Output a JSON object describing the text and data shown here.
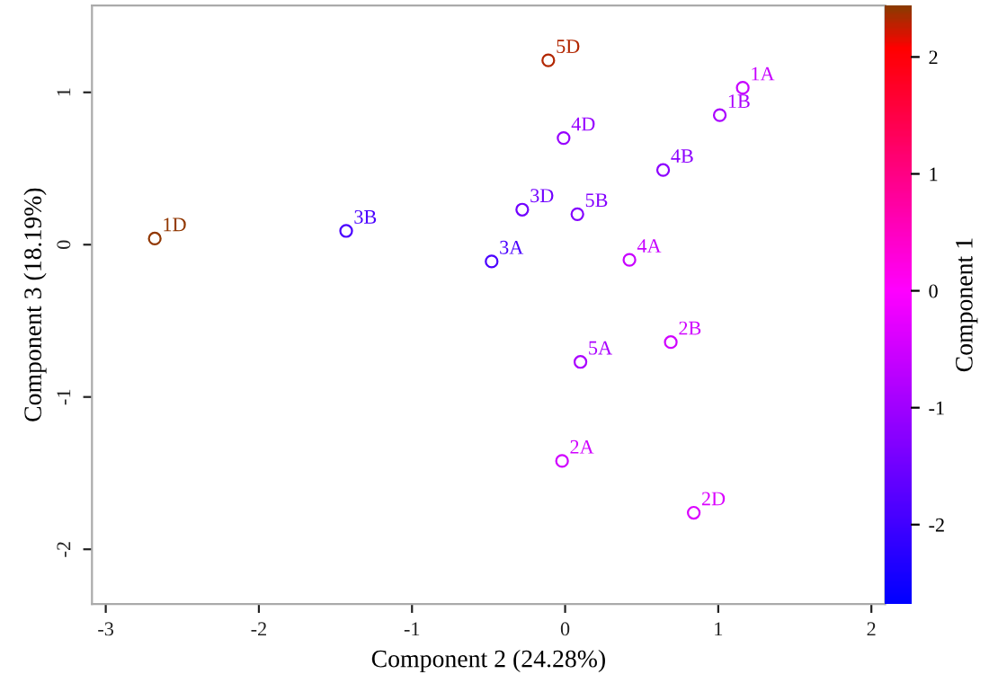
{
  "chart_data": {
    "type": "scatter",
    "xlabel": "Component 2 (24.28%)",
    "ylabel": "Component 3 (18.19%)",
    "clabel": "Component 1",
    "x": [
      -2.68,
      -1.43,
      -0.48,
      -0.11,
      1.16,
      1.01,
      -0.01,
      0.64,
      -0.28,
      0.08,
      0.42,
      0.69,
      0.1,
      -0.02,
      0.84
    ],
    "values": [
      0.04,
      0.09,
      -0.11,
      1.21,
      1.03,
      0.85,
      0.7,
      0.49,
      0.23,
      0.2,
      -0.1,
      -0.64,
      -0.77,
      -1.42,
      -1.76
    ],
    "cvalues": [
      2.4,
      -1.9,
      -1.9,
      2.3,
      -0.6,
      -0.9,
      -1.1,
      -1.2,
      -1.5,
      -1.3,
      -0.6,
      -0.5,
      -0.9,
      -0.5,
      -0.4
    ],
    "annotations": [
      {
        "text": "1D",
        "x": -2.68,
        "y": 0.04
      },
      {
        "text": "3B",
        "x": -1.43,
        "y": 0.09
      },
      {
        "text": "3A",
        "x": -0.48,
        "y": -0.11
      },
      {
        "text": "5D",
        "x": -0.11,
        "y": 1.21
      },
      {
        "text": "1A",
        "x": 1.16,
        "y": 1.03
      },
      {
        "text": "1B",
        "x": 1.01,
        "y": 0.85
      },
      {
        "text": "4D",
        "x": -0.01,
        "y": 0.7
      },
      {
        "text": "4B",
        "x": 0.64,
        "y": 0.49
      },
      {
        "text": "3D",
        "x": -0.28,
        "y": 0.23
      },
      {
        "text": "5B",
        "x": 0.08,
        "y": 0.2
      },
      {
        "text": "4A",
        "x": 0.42,
        "y": -0.1
      },
      {
        "text": "2B",
        "x": 0.69,
        "y": -0.64
      },
      {
        "text": "5A",
        "x": 0.1,
        "y": -0.77
      },
      {
        "text": "2A",
        "x": -0.02,
        "y": -1.42
      },
      {
        "text": "2D",
        "x": 0.84,
        "y": -1.76
      }
    ],
    "xlim": [
      -3.09,
      2.09
    ],
    "ylim": [
      -2.36,
      1.57
    ],
    "xticks": [
      -3,
      -2,
      -1,
      0,
      1,
      2
    ],
    "yticks": [
      -2,
      -1,
      0,
      1
    ],
    "clim": [
      -2.68,
      2.44
    ],
    "cticks": [
      -2,
      -1,
      0,
      1,
      2
    ],
    "marker": "circle",
    "grid": false
  }
}
